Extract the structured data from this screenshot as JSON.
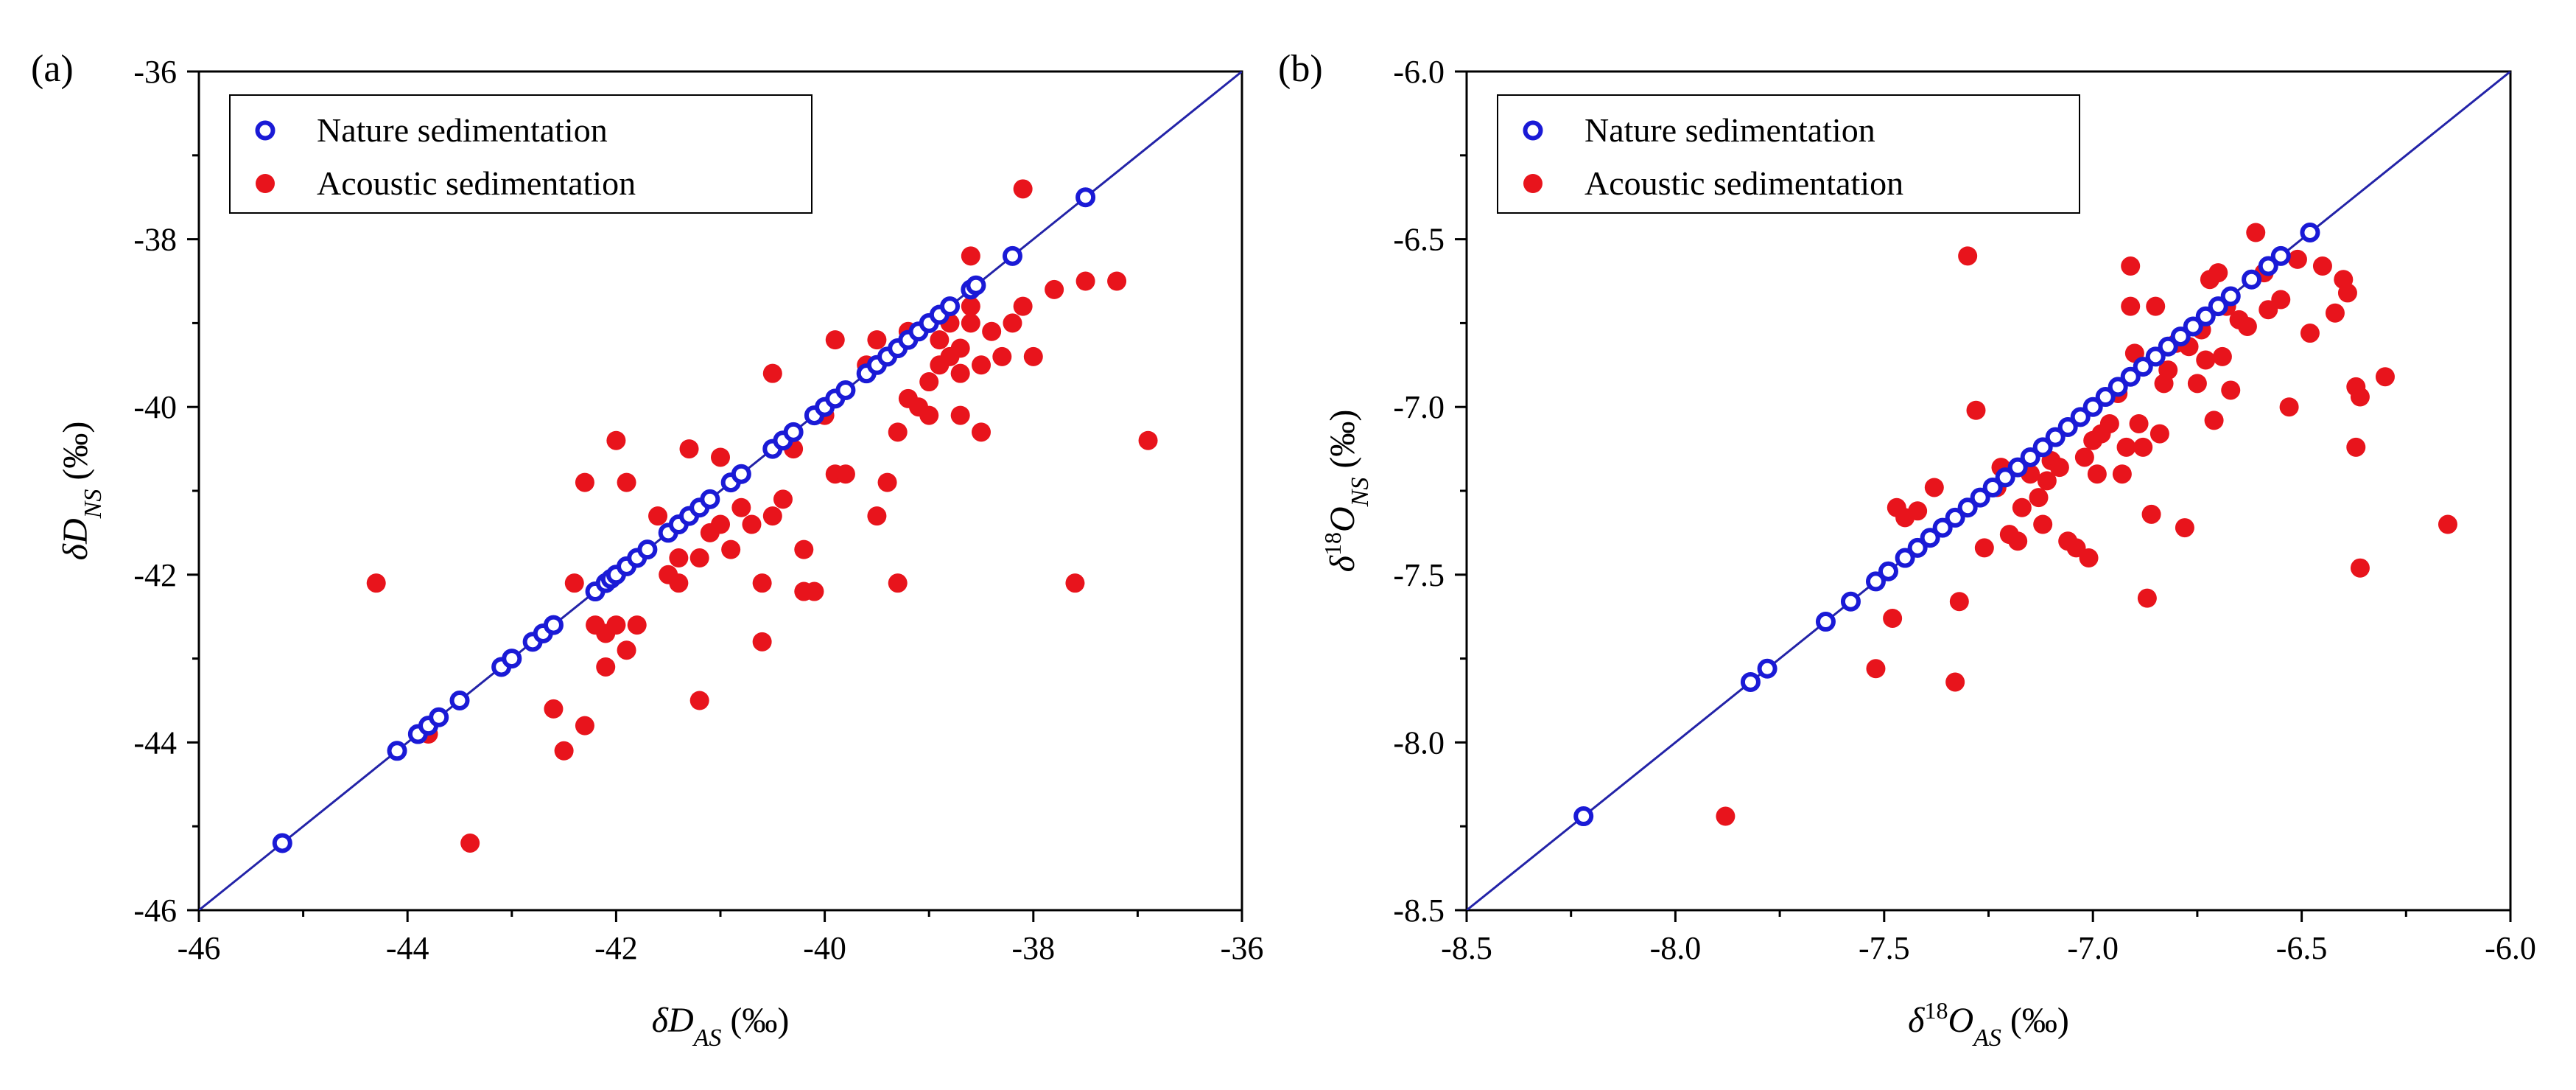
{
  "colors": {
    "nature": "#1a1ad6",
    "acoustic": "#e8141c",
    "diagonal": "#2323a8",
    "axis": "#000000"
  },
  "chart_data": [
    {
      "panel_label": "(a)",
      "type": "scatter",
      "xlabel": {
        "main": "δD",
        "sub": "AS",
        "unit": " (‰)"
      },
      "ylabel": {
        "main": "δD",
        "sub": "NS",
        "unit": " (‰)"
      },
      "xlim": [
        -46,
        -36
      ],
      "ylim": [
        -46,
        -36
      ],
      "xticks": [
        -46,
        -44,
        -42,
        -40,
        -38,
        -36
      ],
      "xtick_labels": [
        "-46",
        "-44",
        "-42",
        "-40",
        "-38",
        "-36"
      ],
      "yticks": [
        -46,
        -44,
        -42,
        -40,
        -38,
        -36
      ],
      "ytick_labels": [
        "-46",
        "-44",
        "-42",
        "-40",
        "-38",
        "-36"
      ],
      "diagonal": true,
      "legend_position": "top-left",
      "series": [
        {
          "name": "Nature sedimentation",
          "marker": "open-circle",
          "points": [
            [
              -45.2,
              -45.2
            ],
            [
              -44.1,
              -44.1
            ],
            [
              -43.9,
              -43.9
            ],
            [
              -43.8,
              -43.8
            ],
            [
              -43.7,
              -43.7
            ],
            [
              -43.5,
              -43.5
            ],
            [
              -43.1,
              -43.1
            ],
            [
              -43.0,
              -43.0
            ],
            [
              -42.8,
              -42.8
            ],
            [
              -42.7,
              -42.7
            ],
            [
              -42.6,
              -42.6
            ],
            [
              -42.2,
              -42.2
            ],
            [
              -42.1,
              -42.1
            ],
            [
              -42.05,
              -42.05
            ],
            [
              -42.0,
              -42.0
            ],
            [
              -41.9,
              -41.9
            ],
            [
              -41.8,
              -41.8
            ],
            [
              -41.7,
              -41.7
            ],
            [
              -41.5,
              -41.5
            ],
            [
              -41.4,
              -41.4
            ],
            [
              -41.3,
              -41.3
            ],
            [
              -41.2,
              -41.2
            ],
            [
              -41.1,
              -41.1
            ],
            [
              -40.9,
              -40.9
            ],
            [
              -40.8,
              -40.8
            ],
            [
              -40.5,
              -40.5
            ],
            [
              -40.4,
              -40.4
            ],
            [
              -40.3,
              -40.3
            ],
            [
              -40.1,
              -40.1
            ],
            [
              -40.0,
              -40.0
            ],
            [
              -39.9,
              -39.9
            ],
            [
              -39.8,
              -39.8
            ],
            [
              -39.6,
              -39.6
            ],
            [
              -39.5,
              -39.5
            ],
            [
              -39.4,
              -39.4
            ],
            [
              -39.3,
              -39.3
            ],
            [
              -39.2,
              -39.2
            ],
            [
              -39.1,
              -39.1
            ],
            [
              -39.0,
              -39.0
            ],
            [
              -38.9,
              -38.9
            ],
            [
              -38.8,
              -38.8
            ],
            [
              -38.6,
              -38.6
            ],
            [
              -38.55,
              -38.55
            ],
            [
              -38.2,
              -38.2
            ],
            [
              -37.5,
              -37.5
            ]
          ]
        },
        {
          "name": "Acoustic sedimentation",
          "marker": "filled-circle",
          "points": [
            [
              -44.3,
              -42.1
            ],
            [
              -43.8,
              -43.9
            ],
            [
              -43.4,
              -45.2
            ],
            [
              -42.6,
              -43.6
            ],
            [
              -42.5,
              -44.1
            ],
            [
              -42.4,
              -42.1
            ],
            [
              -42.3,
              -40.9
            ],
            [
              -42.3,
              -43.8
            ],
            [
              -42.2,
              -42.6
            ],
            [
              -42.1,
              -43.1
            ],
            [
              -42.1,
              -42.7
            ],
            [
              -42.0,
              -42.6
            ],
            [
              -42.0,
              -40.4
            ],
            [
              -41.9,
              -40.9
            ],
            [
              -41.9,
              -42.9
            ],
            [
              -41.8,
              -42.6
            ],
            [
              -41.6,
              -41.3
            ],
            [
              -41.5,
              -42.0
            ],
            [
              -41.4,
              -42.1
            ],
            [
              -41.4,
              -41.8
            ],
            [
              -41.3,
              -40.5
            ],
            [
              -41.2,
              -43.5
            ],
            [
              -41.2,
              -41.8
            ],
            [
              -41.1,
              -41.5
            ],
            [
              -41.0,
              -40.6
            ],
            [
              -41.0,
              -41.4
            ],
            [
              -40.9,
              -41.7
            ],
            [
              -40.8,
              -41.2
            ],
            [
              -40.7,
              -41.4
            ],
            [
              -40.6,
              -42.1
            ],
            [
              -40.6,
              -42.8
            ],
            [
              -40.5,
              -41.3
            ],
            [
              -40.5,
              -39.6
            ],
            [
              -40.4,
              -41.1
            ],
            [
              -40.3,
              -40.5
            ],
            [
              -40.2,
              -42.2
            ],
            [
              -40.2,
              -41.7
            ],
            [
              -40.1,
              -42.2
            ],
            [
              -40.0,
              -40.1
            ],
            [
              -39.9,
              -39.2
            ],
            [
              -39.9,
              -40.8
            ],
            [
              -39.8,
              -40.8
            ],
            [
              -39.6,
              -39.5
            ],
            [
              -39.5,
              -41.3
            ],
            [
              -39.5,
              -39.2
            ],
            [
              -39.4,
              -40.9
            ],
            [
              -39.3,
              -42.1
            ],
            [
              -39.3,
              -40.3
            ],
            [
              -39.2,
              -39.1
            ],
            [
              -39.2,
              -39.9
            ],
            [
              -39.1,
              -40.0
            ],
            [
              -39.0,
              -39.7
            ],
            [
              -39.0,
              -40.1
            ],
            [
              -38.9,
              -39.2
            ],
            [
              -38.9,
              -39.5
            ],
            [
              -38.8,
              -39.0
            ],
            [
              -38.8,
              -39.4
            ],
            [
              -38.7,
              -40.1
            ],
            [
              -38.7,
              -39.6
            ],
            [
              -38.7,
              -39.3
            ],
            [
              -38.6,
              -39.0
            ],
            [
              -38.6,
              -38.2
            ],
            [
              -38.6,
              -38.8
            ],
            [
              -38.5,
              -39.5
            ],
            [
              -38.5,
              -40.3
            ],
            [
              -38.4,
              -39.1
            ],
            [
              -38.3,
              -39.4
            ],
            [
              -38.2,
              -39.0
            ],
            [
              -38.1,
              -38.8
            ],
            [
              -38.0,
              -39.4
            ],
            [
              -37.8,
              -38.6
            ],
            [
              -37.6,
              -42.1
            ],
            [
              -37.5,
              -38.5
            ],
            [
              -37.2,
              -38.5
            ],
            [
              -36.9,
              -40.4
            ],
            [
              -38.1,
              -37.4
            ]
          ]
        }
      ]
    },
    {
      "panel_label": "(b)",
      "type": "scatter",
      "xlabel": {
        "pre": "δ",
        "sup": "18",
        "main": "O",
        "sub": "AS",
        "unit": " (‰)"
      },
      "ylabel": {
        "pre": "δ",
        "sup": "18",
        "main": "O",
        "sub": "NS",
        "unit": " (‰)"
      },
      "xlim": [
        -8.5,
        -6.0
      ],
      "ylim": [
        -8.5,
        -6.0
      ],
      "xticks": [
        -8.5,
        -8.0,
        -7.5,
        -7.0,
        -6.5,
        -6.0
      ],
      "xtick_labels": [
        "-8.5",
        "-8.0",
        "-7.5",
        "-7.0",
        "-6.5",
        "-6.0"
      ],
      "yticks": [
        -8.5,
        -8.0,
        -7.5,
        -7.0,
        -6.5,
        -6.0
      ],
      "ytick_labels": [
        "-8.5",
        "-8.0",
        "-7.5",
        "-7.0",
        "-6.5",
        "-6.0"
      ],
      "diagonal": true,
      "legend_position": "top-left",
      "series": [
        {
          "name": "Nature sedimentation",
          "marker": "open-circle",
          "points": [
            [
              -8.22,
              -8.22
            ],
            [
              -7.82,
              -7.82
            ],
            [
              -7.78,
              -7.78
            ],
            [
              -7.64,
              -7.64
            ],
            [
              -7.58,
              -7.58
            ],
            [
              -7.52,
              -7.52
            ],
            [
              -7.49,
              -7.49
            ],
            [
              -7.45,
              -7.45
            ],
            [
              -7.42,
              -7.42
            ],
            [
              -7.39,
              -7.39
            ],
            [
              -7.36,
              -7.36
            ],
            [
              -7.33,
              -7.33
            ],
            [
              -7.3,
              -7.3
            ],
            [
              -7.27,
              -7.27
            ],
            [
              -7.24,
              -7.24
            ],
            [
              -7.21,
              -7.21
            ],
            [
              -7.18,
              -7.18
            ],
            [
              -7.15,
              -7.15
            ],
            [
              -7.12,
              -7.12
            ],
            [
              -7.09,
              -7.09
            ],
            [
              -7.06,
              -7.06
            ],
            [
              -7.03,
              -7.03
            ],
            [
              -7.0,
              -7.0
            ],
            [
              -6.97,
              -6.97
            ],
            [
              -6.94,
              -6.94
            ],
            [
              -6.91,
              -6.91
            ],
            [
              -6.88,
              -6.88
            ],
            [
              -6.85,
              -6.85
            ],
            [
              -6.82,
              -6.82
            ],
            [
              -6.79,
              -6.79
            ],
            [
              -6.76,
              -6.76
            ],
            [
              -6.73,
              -6.73
            ],
            [
              -6.7,
              -6.7
            ],
            [
              -6.67,
              -6.67
            ],
            [
              -6.62,
              -6.62
            ],
            [
              -6.58,
              -6.58
            ],
            [
              -6.55,
              -6.55
            ],
            [
              -6.48,
              -6.48
            ]
          ]
        },
        {
          "name": "Acoustic sedimentation",
          "marker": "filled-circle",
          "points": [
            [
              -7.88,
              -8.22
            ],
            [
              -7.52,
              -7.78
            ],
            [
              -7.48,
              -7.63
            ],
            [
              -7.47,
              -7.3
            ],
            [
              -7.45,
              -7.33
            ],
            [
              -7.42,
              -7.31
            ],
            [
              -7.38,
              -7.24
            ],
            [
              -7.33,
              -7.82
            ],
            [
              -7.32,
              -7.58
            ],
            [
              -7.3,
              -6.55
            ],
            [
              -7.28,
              -7.01
            ],
            [
              -7.26,
              -7.42
            ],
            [
              -7.23,
              -7.24
            ],
            [
              -7.22,
              -7.18
            ],
            [
              -7.2,
              -7.38
            ],
            [
              -7.18,
              -7.4
            ],
            [
              -7.17,
              -7.3
            ],
            [
              -7.15,
              -7.2
            ],
            [
              -7.13,
              -7.27
            ],
            [
              -7.12,
              -7.35
            ],
            [
              -7.11,
              -7.22
            ],
            [
              -7.1,
              -7.16
            ],
            [
              -7.08,
              -7.18
            ],
            [
              -7.06,
              -7.4
            ],
            [
              -7.04,
              -7.42
            ],
            [
              -7.02,
              -7.15
            ],
            [
              -7.01,
              -7.45
            ],
            [
              -7.0,
              -7.1
            ],
            [
              -6.99,
              -7.2
            ],
            [
              -6.98,
              -7.08
            ],
            [
              -6.96,
              -7.05
            ],
            [
              -6.94,
              -6.96
            ],
            [
              -6.93,
              -7.2
            ],
            [
              -6.92,
              -7.12
            ],
            [
              -6.91,
              -6.58
            ],
            [
              -6.91,
              -6.7
            ],
            [
              -6.9,
              -6.84
            ],
            [
              -6.89,
              -7.05
            ],
            [
              -6.88,
              -7.12
            ],
            [
              -6.87,
              -7.57
            ],
            [
              -6.86,
              -7.32
            ],
            [
              -6.85,
              -6.7
            ],
            [
              -6.84,
              -7.08
            ],
            [
              -6.83,
              -6.93
            ],
            [
              -6.82,
              -6.89
            ],
            [
              -6.8,
              -6.81
            ],
            [
              -6.78,
              -7.36
            ],
            [
              -6.77,
              -6.82
            ],
            [
              -6.75,
              -6.93
            ],
            [
              -6.74,
              -6.77
            ],
            [
              -6.73,
              -6.86
            ],
            [
              -6.72,
              -6.62
            ],
            [
              -6.71,
              -7.04
            ],
            [
              -6.7,
              -6.6
            ],
            [
              -6.69,
              -6.85
            ],
            [
              -6.68,
              -6.7
            ],
            [
              -6.67,
              -6.95
            ],
            [
              -6.65,
              -6.74
            ],
            [
              -6.63,
              -6.76
            ],
            [
              -6.61,
              -6.48
            ],
            [
              -6.59,
              -6.6
            ],
            [
              -6.58,
              -6.71
            ],
            [
              -6.55,
              -6.68
            ],
            [
              -6.53,
              -7.0
            ],
            [
              -6.51,
              -6.56
            ],
            [
              -6.48,
              -6.78
            ],
            [
              -6.45,
              -6.58
            ],
            [
              -6.42,
              -6.72
            ],
            [
              -6.4,
              -6.62
            ],
            [
              -6.39,
              -6.66
            ],
            [
              -6.37,
              -6.94
            ],
            [
              -6.37,
              -7.12
            ],
            [
              -6.36,
              -7.48
            ],
            [
              -6.36,
              -6.97
            ],
            [
              -6.3,
              -6.91
            ],
            [
              -6.15,
              -7.35
            ]
          ]
        }
      ]
    }
  ]
}
